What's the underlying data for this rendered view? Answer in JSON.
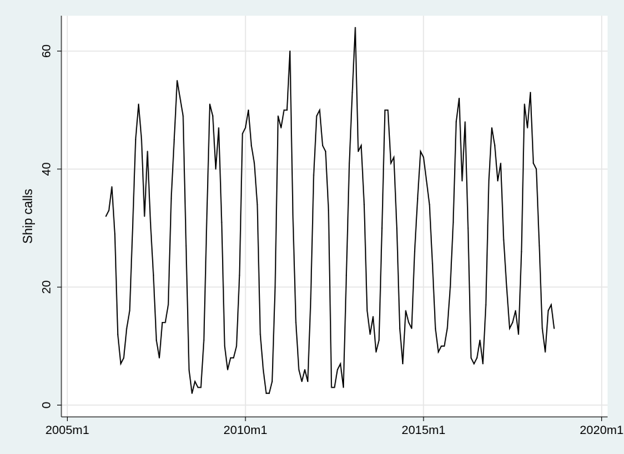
{
  "chart_data": {
    "type": "line",
    "title": "",
    "xlabel": "",
    "ylabel": "Ship calls",
    "x_start": "2006m2",
    "x_frequency": "monthly",
    "xlim": [
      "2004m11",
      "2020m3"
    ],
    "ylim": [
      -2,
      66
    ],
    "x_ticks": [
      {
        "value": "2005m1",
        "label": "2005m1"
      },
      {
        "value": "2010m1",
        "label": "2010m1"
      },
      {
        "value": "2015m1",
        "label": "2015m1"
      },
      {
        "value": "2020m1",
        "label": "2020m1"
      }
    ],
    "y_ticks": [
      {
        "value": 0,
        "label": "0"
      },
      {
        "value": 20,
        "label": "20"
      },
      {
        "value": 40,
        "label": "40"
      },
      {
        "value": 60,
        "label": "60"
      }
    ],
    "grid": true,
    "legend": "none",
    "line_color": "#000000",
    "series": [
      {
        "values": [
          32,
          33,
          37,
          29,
          12,
          7,
          8,
          13,
          16,
          30,
          45,
          51,
          45,
          32,
          43,
          31,
          22,
          11,
          8,
          14,
          14,
          17,
          35,
          45,
          55,
          52,
          49,
          27,
          6,
          2,
          4,
          3,
          3,
          11,
          32,
          51,
          49,
          40,
          47,
          31,
          10,
          6,
          8,
          8,
          10,
          22,
          46,
          47,
          50,
          44,
          41,
          34,
          12,
          6,
          2,
          2,
          4,
          20,
          49,
          47,
          50,
          50,
          60,
          32,
          14,
          6,
          4,
          6,
          4,
          18,
          39,
          49,
          50,
          44,
          43,
          33,
          3,
          3,
          6,
          7,
          3,
          22,
          41,
          53,
          64,
          43,
          44,
          34,
          16,
          12,
          15,
          9,
          11,
          30,
          50,
          50,
          41,
          42,
          30,
          13,
          7,
          16,
          14,
          13,
          26,
          35,
          43,
          42,
          38,
          34,
          24,
          13,
          9,
          10,
          10,
          13,
          20,
          31,
          48,
          52,
          38,
          48,
          30,
          8,
          7,
          8,
          11,
          7,
          17,
          38,
          47,
          44,
          38,
          41,
          28,
          20,
          13,
          14,
          16,
          12,
          26,
          51,
          47,
          53,
          41,
          40,
          27,
          13,
          9,
          16,
          17,
          13
        ]
      }
    ]
  }
}
